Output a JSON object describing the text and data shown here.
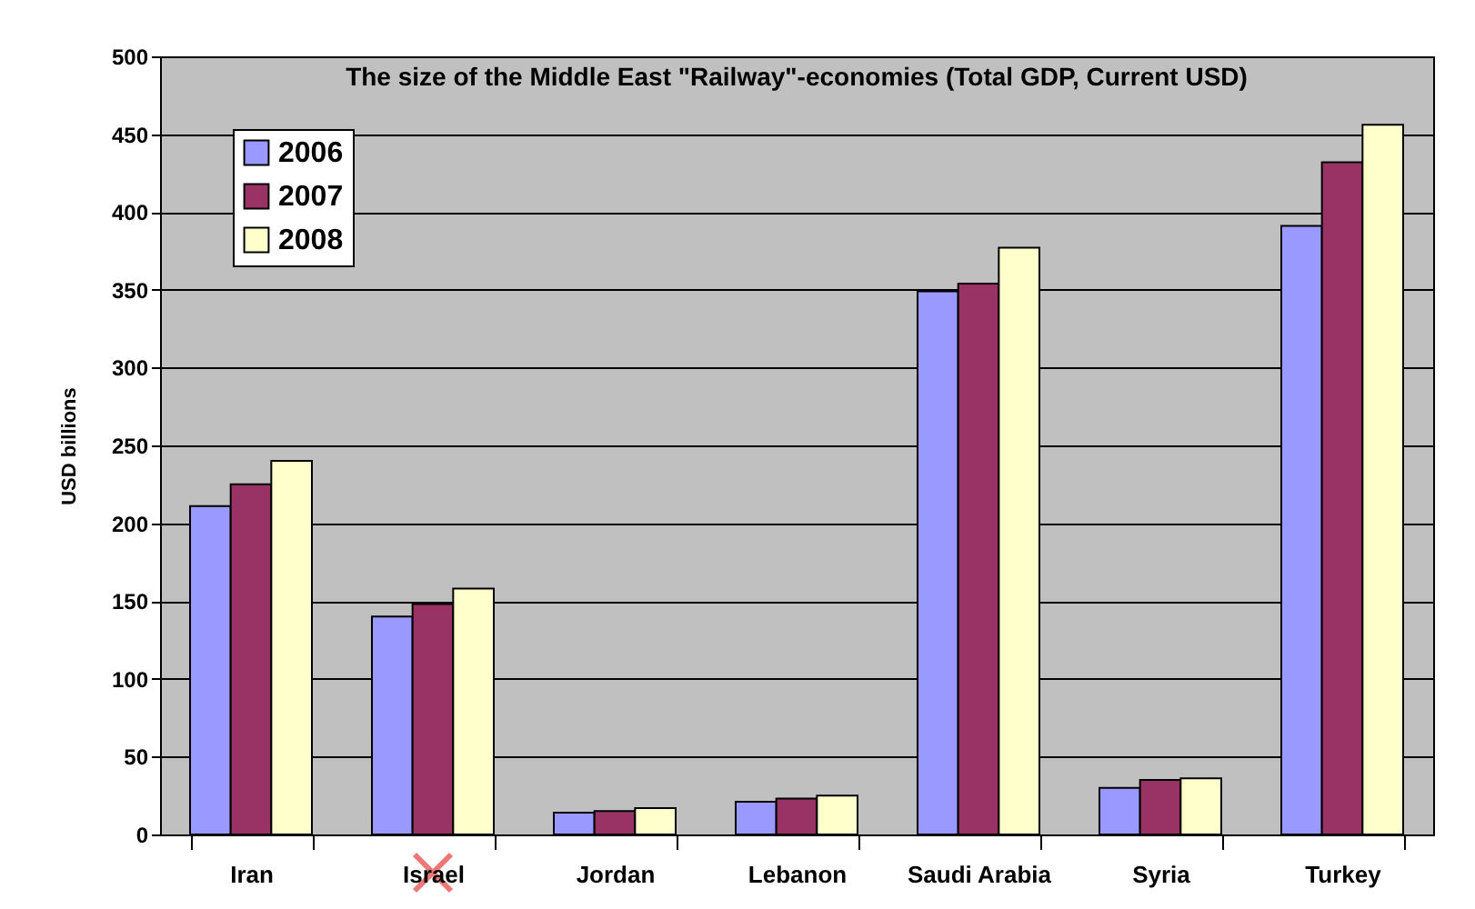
{
  "chart_data": {
    "type": "bar",
    "title": "The size of the  Middle East \"Railway\"-economies (Total GDP, Current USD)",
    "ylabel": "USD billions",
    "categories": [
      "Iran",
      "Israel",
      "Jordan",
      "Lebanon",
      "Saudi Arabia",
      "Syria",
      "Turkey"
    ],
    "series": [
      {
        "name": "2006",
        "color": "#9999ff",
        "values": [
          211,
          140,
          14,
          21,
          349,
          30,
          391
        ]
      },
      {
        "name": "2007",
        "color": "#993366",
        "values": [
          225,
          148,
          15,
          23,
          354,
          35,
          432
        ]
      },
      {
        "name": "2008",
        "color": "#ffffcc",
        "values": [
          240,
          158,
          17,
          25,
          377,
          36,
          456
        ]
      }
    ],
    "ylim": [
      0,
      500
    ],
    "yticks": [
      0,
      50,
      100,
      150,
      200,
      250,
      300,
      350,
      400,
      450,
      500
    ],
    "grid": true,
    "legend": "top left"
  }
}
